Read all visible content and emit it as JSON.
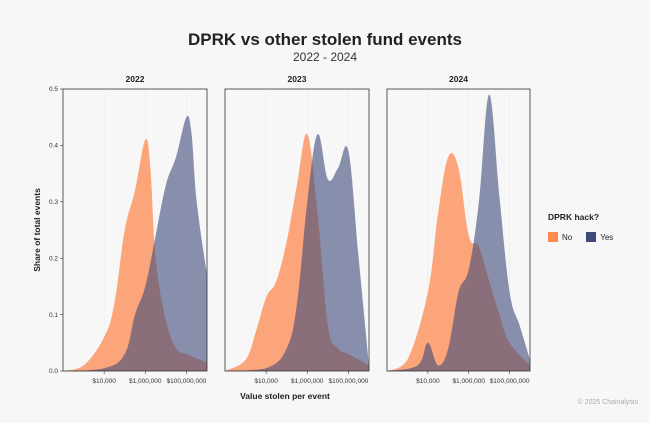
{
  "chart_data": {
    "type": "area",
    "title": "DPRK vs other stolen fund events",
    "subtitle": "2022 - 2024",
    "xlabel": "Value stolen per event",
    "ylabel": "Share of total events",
    "x_scale": "log10",
    "xlim": [
      100,
      1000000000
    ],
    "ylim": [
      0,
      0.5
    ],
    "x_ticks": [
      10000,
      1000000,
      100000000
    ],
    "x_tick_labels": [
      "$10,000",
      "$1,000,000",
      "$100,000,000"
    ],
    "y_ticks": [
      0,
      0.1,
      0.2,
      0.3,
      0.4,
      0.5
    ],
    "y_tick_labels": [
      "0.0",
      "0.1",
      "0.2",
      "0.3",
      "0.4",
      "0.5"
    ],
    "legend": {
      "title": "DPRK hack?",
      "position": "right"
    },
    "series_colors": {
      "No": "#ff8a50",
      "Yes": "#3d4a7a"
    },
    "series_opacity": {
      "No": 0.75,
      "Yes": 0.6
    },
    "panels": [
      {
        "label": "2022",
        "series": [
          {
            "name": "No",
            "x": [
              100,
              1000,
              10000,
              31623,
              100000,
              316228,
              1000000,
              1778279,
              3162278,
              10000000,
              31622777,
              100000000,
              1000000000
            ],
            "values": [
              0.0,
              0.01,
              0.06,
              0.12,
              0.25,
              0.32,
              0.41,
              0.36,
              0.2,
              0.09,
              0.04,
              0.03,
              0.015
            ]
          },
          {
            "name": "Yes",
            "x": [
              100,
              10000,
              100000,
              316228,
              1000000,
              3162278,
              10000000,
              31622777,
              100000000,
              177827941,
              316227766,
              1000000000
            ],
            "values": [
              0.0,
              0.005,
              0.03,
              0.1,
              0.15,
              0.24,
              0.33,
              0.38,
              0.45,
              0.42,
              0.3,
              0.17
            ]
          }
        ]
      },
      {
        "label": "2023",
        "series": [
          {
            "name": "No",
            "x": [
              100,
              1000,
              3162,
              10000,
              31623,
              100000,
              316228,
              1000000,
              3162278,
              10000000,
              31622777,
              100000000,
              1000000000
            ],
            "values": [
              0.0,
              0.02,
              0.07,
              0.13,
              0.16,
              0.23,
              0.33,
              0.42,
              0.28,
              0.08,
              0.04,
              0.03,
              0.01
            ]
          },
          {
            "name": "Yes",
            "x": [
              100,
              10000,
              100000,
              316228,
              1000000,
              3162278,
              10000000,
              31622777,
              100000000,
              316227766,
              1000000000
            ],
            "values": [
              0.0,
              0.005,
              0.04,
              0.12,
              0.3,
              0.42,
              0.34,
              0.36,
              0.39,
              0.2,
              0.01
            ]
          }
        ]
      },
      {
        "label": "2024",
        "series": [
          {
            "name": "No",
            "x": [
              100,
              1000,
              10000,
              31623,
              100000,
              316228,
              1000000,
              3162278,
              10000000,
              31622777,
              100000000,
              1000000000
            ],
            "values": [
              0.0,
              0.02,
              0.14,
              0.28,
              0.38,
              0.36,
              0.24,
              0.22,
              0.16,
              0.1,
              0.05,
              0.01
            ]
          },
          {
            "name": "Yes",
            "x": [
              100,
              3162,
              10000,
              31623,
              100000,
              316228,
              1000000,
              3162278,
              10000000,
              31622777,
              100000000,
              316227766,
              1000000000
            ],
            "values": [
              0.0,
              0.01,
              0.05,
              0.01,
              0.04,
              0.14,
              0.18,
              0.3,
              0.49,
              0.31,
              0.14,
              0.08,
              0.02
            ]
          }
        ]
      }
    ]
  },
  "credit": "© 2025 Chainalysis"
}
